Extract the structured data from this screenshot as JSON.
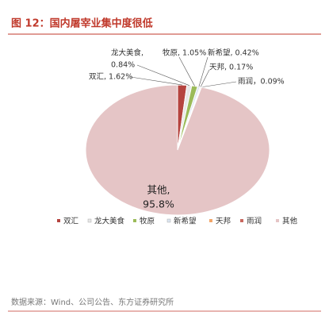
{
  "chart_data": {
    "type": "pie",
    "title": "图 12：国内屠宰业集中度很低",
    "categories": [
      "双汇",
      "龙大美食",
      "牧原",
      "新希望",
      "天邦",
      "雨润",
      "其他"
    ],
    "values": [
      1.62,
      0.84,
      1.05,
      0.42,
      0.17,
      0.09,
      95.8
    ],
    "value_labels": [
      [
        "双汇, 1.62%"
      ],
      [
        "龙大美食,",
        "0.84%"
      ],
      [
        "牧原, 1.05%"
      ],
      [
        "新希望, 0.42%"
      ],
      [
        "天邦, 0.17%"
      ],
      [
        "雨润，0.09%"
      ],
      [
        "其他,",
        "95.8%"
      ]
    ],
    "colors": [
      "#b5443f",
      "#e8e8e8",
      "#9bbb59",
      "#dce6f2",
      "#f2a66a",
      "#c9685f",
      "#e5c5c6"
    ],
    "legend": "bottom",
    "source": "数据来源：Wind、公司公告、东方证券研究所"
  }
}
